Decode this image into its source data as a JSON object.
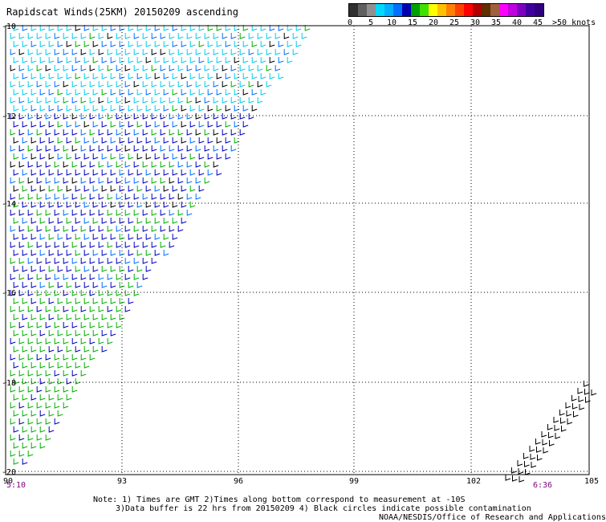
{
  "title": "Rapidscat Winds(25KM) 20150209 ascending",
  "legend": {
    "colors": [
      "#303030",
      "#606060",
      "#909090",
      "#00d8ff",
      "#00b0ff",
      "#0070ff",
      "#0000b0",
      "#00a000",
      "#40e000",
      "#ffff00",
      "#ffc000",
      "#ff8000",
      "#ff4000",
      "#ff0000",
      "#b00000",
      "#603000",
      "#a06040",
      "#ff00ff",
      "#c000e0",
      "#8000c0",
      "#4000a0",
      "#300080"
    ],
    "labels": [
      "0",
      "5",
      "10",
      "15",
      "20",
      "25",
      "30",
      "35",
      "40",
      "45",
      ">50 knots"
    ]
  },
  "axes": {
    "x_ticks": [
      "90",
      "93",
      "96",
      "99",
      "102",
      "105"
    ],
    "y_ticks": [
      "-10",
      "-12",
      "-14",
      "-16",
      "-18",
      "-20"
    ]
  },
  "times": {
    "left": "5:10",
    "right": "6:36"
  },
  "notes": {
    "line1": "Note: 1) Times are GMT 2)Times along bottom correspond to measurement at -10S",
    "line2": "3)Data buffer is 22 hrs from 20150209 4) Black circles indicate possible contamination",
    "credit": "NOAA/NESDIS/Office of Research and Applications"
  }
}
